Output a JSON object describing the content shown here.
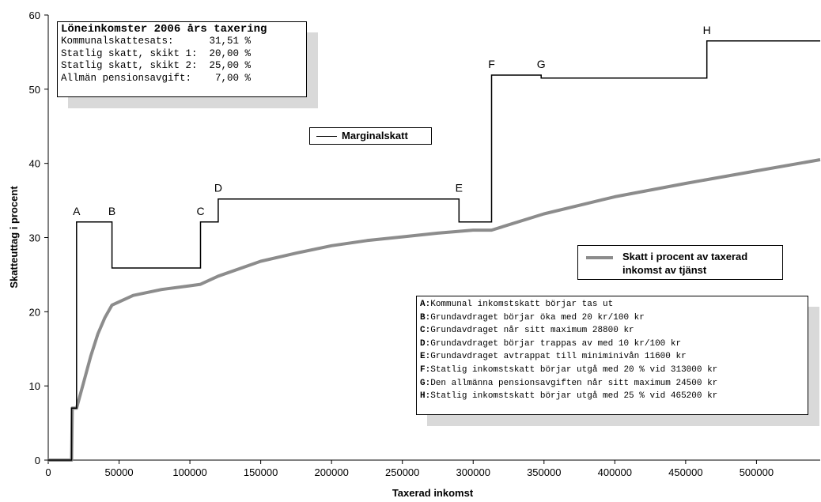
{
  "chart_data": {
    "type": "line",
    "xlabel": "Taxerad inkomst",
    "ylabel": "Skatteuttag i procent",
    "xlim": [
      0,
      545000
    ],
    "ylim": [
      0,
      60
    ],
    "x_ticks": [
      0,
      50000,
      100000,
      150000,
      200000,
      250000,
      300000,
      350000,
      400000,
      450000,
      500000
    ],
    "y_ticks": [
      0,
      10,
      20,
      30,
      40,
      50,
      60
    ],
    "grid": false,
    "series": [
      {
        "name": "Marginalskatt",
        "color": "#000000",
        "step": true,
        "points": [
          [
            0,
            0
          ],
          [
            16500,
            0
          ],
          [
            16500,
            7
          ],
          [
            20000,
            7
          ],
          [
            20000,
            32.1
          ],
          [
            45000,
            32.1
          ],
          [
            45000,
            25.9
          ],
          [
            107500,
            25.9
          ],
          [
            107500,
            32.1
          ],
          [
            120000,
            32.1
          ],
          [
            120000,
            35.2
          ],
          [
            290000,
            35.2
          ],
          [
            290000,
            32.1
          ],
          [
            313000,
            32.1
          ],
          [
            313000,
            51.9
          ],
          [
            348000,
            51.9
          ],
          [
            348000,
            51.5
          ],
          [
            465000,
            51.5
          ],
          [
            465000,
            56.5
          ],
          [
            545000,
            56.5
          ]
        ]
      },
      {
        "name": "Skatt i procent av taxerad inkomst av tjänst",
        "color": "#8c8c8c",
        "points": [
          [
            0,
            0
          ],
          [
            16500,
            0
          ],
          [
            17000,
            7
          ],
          [
            20000,
            7
          ],
          [
            25000,
            10.5
          ],
          [
            30000,
            14
          ],
          [
            35000,
            17
          ],
          [
            40000,
            19.2
          ],
          [
            45000,
            20.9
          ],
          [
            60000,
            22.2
          ],
          [
            80000,
            23.0
          ],
          [
            100000,
            23.5
          ],
          [
            107500,
            23.7
          ],
          [
            120000,
            24.8
          ],
          [
            150000,
            26.8
          ],
          [
            175000,
            27.9
          ],
          [
            200000,
            28.9
          ],
          [
            225000,
            29.6
          ],
          [
            250000,
            30.1
          ],
          [
            275000,
            30.6
          ],
          [
            300000,
            31.0
          ],
          [
            313000,
            31.0
          ],
          [
            350000,
            33.2
          ],
          [
            400000,
            35.5
          ],
          [
            450000,
            37.3
          ],
          [
            500000,
            39.0
          ],
          [
            545000,
            40.5
          ]
        ]
      }
    ],
    "point_labels": [
      {
        "text": "A",
        "x": 20000,
        "y": 32.1
      },
      {
        "text": "B",
        "x": 45000,
        "y": 32.1
      },
      {
        "text": "C",
        "x": 107500,
        "y": 32.1
      },
      {
        "text": "D",
        "x": 120000,
        "y": 35.2
      },
      {
        "text": "E",
        "x": 290000,
        "y": 35.2
      },
      {
        "text": "F",
        "x": 313000,
        "y": 51.9
      },
      {
        "text": "G",
        "x": 348000,
        "y": 51.9
      },
      {
        "text": "H",
        "x": 465000,
        "y": 56.5
      }
    ]
  },
  "rates_box": {
    "title": "Löneinkomster 2006 års taxering",
    "rows": [
      "Kommunalskattesats:      31,51 %",
      "Statlig skatt, skikt 1:  20,00 %",
      "Statlig skatt, skikt 2:  25,00 %",
      "Allmän pensionsavgift:    7,00 %"
    ]
  },
  "legend": {
    "marginal": "Marginalskatt",
    "effective_line1": "Skatt i procent av taxerad",
    "effective_line2": "inkomst av tjänst"
  },
  "notes": [
    {
      "key": "A",
      "text": "Kommunal inkomstskatt börjar tas ut"
    },
    {
      "key": "B",
      "text": "Grundavdraget börjar öka med 20 kr/100 kr"
    },
    {
      "key": "C",
      "text": "Grundavdraget når sitt maximum 28800 kr"
    },
    {
      "key": "D",
      "text": "Grundavdraget börjar trappas av med 10 kr/100 kr"
    },
    {
      "key": "E",
      "text": "Grundavdraget avtrappat till miniminivån 11600 kr"
    },
    {
      "key": "F",
      "text": "Statlig inkomstskatt börjar utgå med 20 % vid 313000 kr"
    },
    {
      "key": "G",
      "text": "Den allmänna pensionsavgiften når sitt maximum 24500 kr"
    },
    {
      "key": "H",
      "text": "Statlig inkomstskatt börjar utgå med 25 % vid 465200 kr"
    }
  ]
}
